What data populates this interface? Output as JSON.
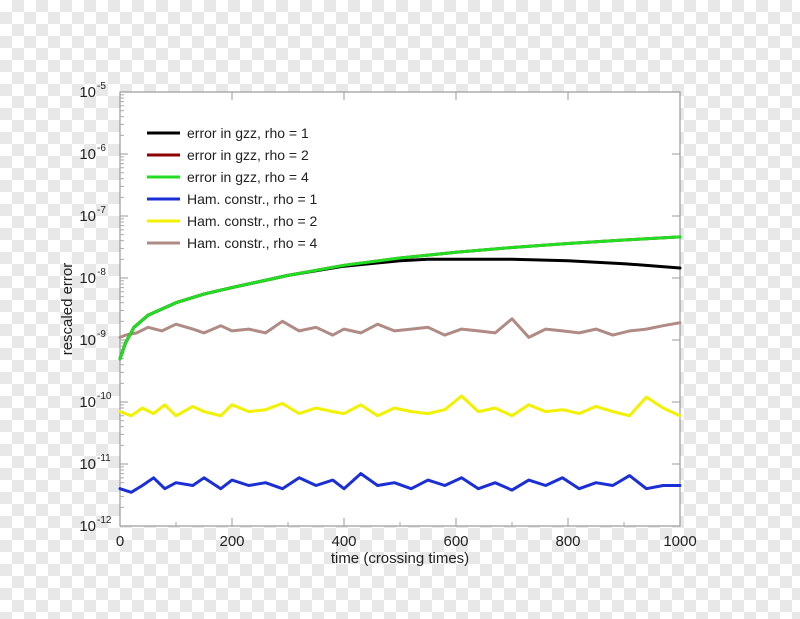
{
  "chart_data": {
    "type": "line",
    "title": "",
    "xlabel": "time (crossing times)",
    "ylabel": "rescaled error",
    "xlim": [
      0,
      1000
    ],
    "ylim": [
      1e-12,
      1e-05
    ],
    "yscale": "log",
    "grid": false,
    "legend_position": "top-left",
    "x_ticks": [
      "0",
      "200",
      "400",
      "600",
      "800",
      "1000"
    ],
    "y_ticks": [
      {
        "base": "10",
        "exp": "-12"
      },
      {
        "base": "10",
        "exp": "-11"
      },
      {
        "base": "10",
        "exp": "-10"
      },
      {
        "base": "10",
        "exp": "-9"
      },
      {
        "base": "10",
        "exp": "-8"
      },
      {
        "base": "10",
        "exp": "-7"
      },
      {
        "base": "10",
        "exp": "-6"
      },
      {
        "base": "10",
        "exp": "-5"
      }
    ],
    "series": [
      {
        "name": "error in gzz, rho = 1",
        "color": "#000000",
        "x": [
          0,
          10,
          25,
          50,
          100,
          150,
          200,
          300,
          400,
          500,
          550,
          600,
          700,
          800,
          900,
          1000
        ],
        "y": [
          5e-10,
          9e-10,
          1.6e-09,
          2.5e-09,
          4e-09,
          5.5e-09,
          7e-09,
          1.1e-08,
          1.55e-08,
          1.9e-08,
          2e-08,
          2e-08,
          2e-08,
          1.9e-08,
          1.7e-08,
          1.45e-08
        ]
      },
      {
        "name": "error in gzz, rho = 2",
        "color": "#8b0000",
        "x": [
          0,
          10,
          25,
          50,
          100,
          150,
          200,
          300,
          400,
          500,
          600,
          700,
          800,
          900,
          1000
        ],
        "y": [
          5e-10,
          9e-10,
          1.6e-09,
          2.5e-09,
          4e-09,
          5.5e-09,
          7e-09,
          1.1e-08,
          1.6e-08,
          2.1e-08,
          2.6e-08,
          3.1e-08,
          3.6e-08,
          4.1e-08,
          4.6e-08
        ]
      },
      {
        "name": "error in gzz, rho = 4",
        "color": "#22dd22",
        "x": [
          0,
          10,
          25,
          50,
          100,
          150,
          200,
          300,
          400,
          500,
          600,
          700,
          800,
          900,
          1000
        ],
        "y": [
          5e-10,
          9e-10,
          1.6e-09,
          2.5e-09,
          4e-09,
          5.5e-09,
          7e-09,
          1.1e-08,
          1.6e-08,
          2.1e-08,
          2.6e-08,
          3.1e-08,
          3.6e-08,
          4.1e-08,
          4.6e-08
        ]
      },
      {
        "name": "Ham. constr., rho = 1",
        "color": "#1a2fd6",
        "x": [
          0,
          20,
          40,
          60,
          80,
          100,
          130,
          150,
          180,
          200,
          230,
          260,
          290,
          320,
          350,
          380,
          400,
          430,
          460,
          490,
          520,
          550,
          580,
          610,
          640,
          670,
          700,
          730,
          760,
          790,
          820,
          850,
          880,
          910,
          940,
          970,
          1000
        ],
        "y": [
          4e-12,
          3.5e-12,
          4.5e-12,
          6e-12,
          4e-12,
          5e-12,
          4.5e-12,
          6e-12,
          4e-12,
          5.5e-12,
          4.5e-12,
          5e-12,
          4e-12,
          6e-12,
          4.5e-12,
          5.5e-12,
          4e-12,
          7e-12,
          4.5e-12,
          5e-12,
          4e-12,
          5.5e-12,
          4.5e-12,
          6e-12,
          4e-12,
          5e-12,
          3.8e-12,
          5.5e-12,
          4.5e-12,
          6e-12,
          4e-12,
          5e-12,
          4.5e-12,
          6.5e-12,
          4e-12,
          4.5e-12,
          4.5e-12
        ]
      },
      {
        "name": "Ham. constr., rho = 2",
        "color": "#f2f200",
        "x": [
          0,
          20,
          40,
          60,
          80,
          100,
          130,
          150,
          180,
          200,
          230,
          260,
          290,
          320,
          350,
          380,
          400,
          430,
          460,
          490,
          520,
          550,
          580,
          610,
          640,
          670,
          700,
          730,
          760,
          790,
          820,
          850,
          880,
          910,
          940,
          970,
          1000
        ],
        "y": [
          7e-11,
          6e-11,
          8e-11,
          6.5e-11,
          9e-11,
          6e-11,
          8.5e-11,
          7e-11,
          6e-11,
          9e-11,
          7e-11,
          7.5e-11,
          9.5e-11,
          6.5e-11,
          8e-11,
          7e-11,
          6.5e-11,
          9e-11,
          6e-11,
          8e-11,
          7e-11,
          6.5e-11,
          7.5e-11,
          1.25e-10,
          7e-11,
          8e-11,
          6e-11,
          9e-11,
          7e-11,
          7.5e-11,
          6.5e-11,
          8.5e-11,
          7e-11,
          6e-11,
          1.2e-10,
          8e-11,
          6e-11
        ]
      },
      {
        "name": "Ham. constr., rho = 4",
        "color": "#b08a84",
        "x": [
          0,
          10,
          30,
          50,
          75,
          100,
          130,
          150,
          180,
          200,
          230,
          260,
          290,
          320,
          350,
          380,
          400,
          430,
          460,
          490,
          520,
          550,
          580,
          610,
          640,
          670,
          700,
          730,
          760,
          790,
          820,
          850,
          880,
          910,
          940,
          970,
          1000
        ],
        "y": [
          1.1e-09,
          1.2e-09,
          1.3e-09,
          1.6e-09,
          1.4e-09,
          1.8e-09,
          1.5e-09,
          1.3e-09,
          1.7e-09,
          1.4e-09,
          1.5e-09,
          1.3e-09,
          2e-09,
          1.4e-09,
          1.6e-09,
          1.2e-09,
          1.5e-09,
          1.3e-09,
          1.8e-09,
          1.4e-09,
          1.5e-09,
          1.6e-09,
          1.2e-09,
          1.5e-09,
          1.4e-09,
          1.3e-09,
          2.2e-09,
          1.1e-09,
          1.5e-09,
          1.4e-09,
          1.3e-09,
          1.5e-09,
          1.2e-09,
          1.4e-09,
          1.5e-09,
          1.7e-09,
          1.9e-09
        ]
      }
    ]
  }
}
